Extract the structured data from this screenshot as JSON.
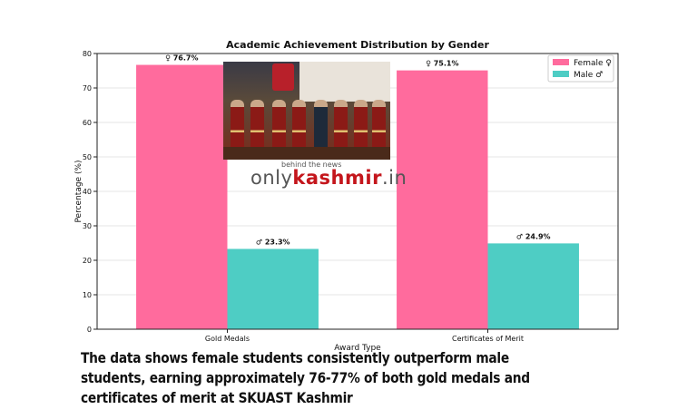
{
  "chart_data": {
    "type": "bar",
    "title": "Academic Achievement Distribution by Gender",
    "xlabel": "Award Type",
    "ylabel": "Percentage (%)",
    "ylim": [
      0,
      80
    ],
    "yticks": [
      0,
      10,
      20,
      30,
      40,
      50,
      60,
      70,
      80
    ],
    "categories": [
      "Gold Medals",
      "Certificates of Merit"
    ],
    "series": [
      {
        "name": "Female ♀",
        "color": "#ff6b9d",
        "values": [
          76.7,
          75.1
        ],
        "labels": [
          "♀ 76.7%",
          "♀ 75.1%"
        ]
      },
      {
        "name": "Male ♂",
        "color": "#4ecdc4",
        "values": [
          23.3,
          24.9
        ],
        "labels": [
          "♂ 23.3%",
          "♂ 24.9%"
        ]
      }
    ],
    "grid": true,
    "legend_position": "top-right"
  },
  "watermark": {
    "tagline": "behind the news",
    "brand_prefix": "only",
    "brand_main": "kashmir",
    "brand_suffix": ".in"
  },
  "caption": "The data shows female students consistently outperform male students, earning approximately 76-77% of both gold medals and certificates of merit at SKUAST Kashmir"
}
